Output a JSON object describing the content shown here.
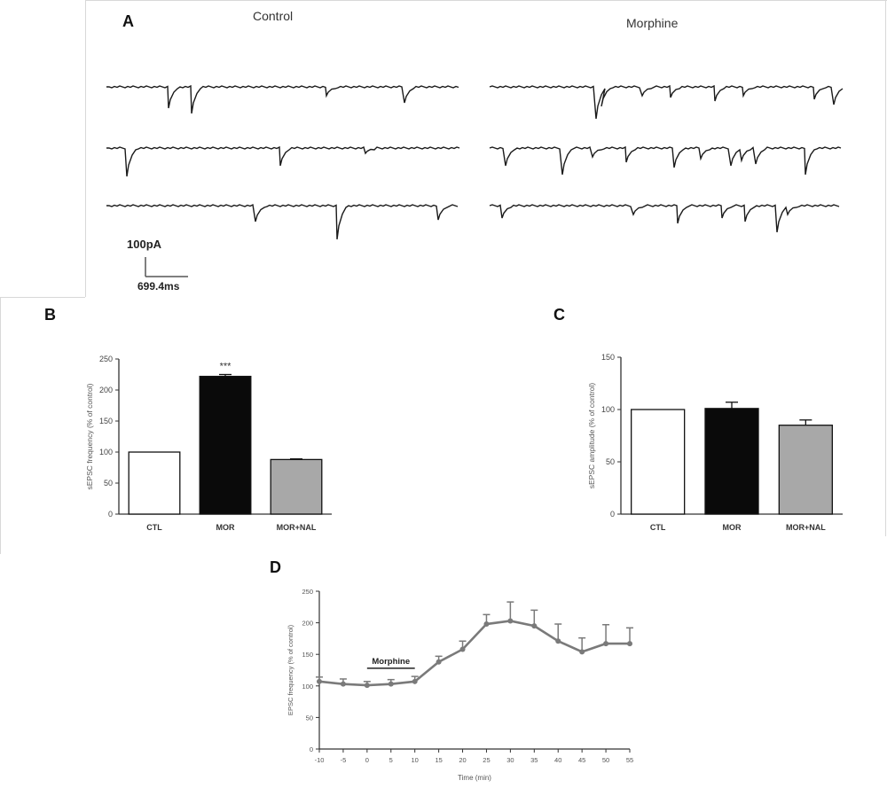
{
  "panel_a": {
    "label": "A",
    "control_title": "Control",
    "morphine_title": "Morphine",
    "scale_current": "100pA",
    "scale_time": "699.4ms"
  },
  "panel_b": {
    "label": "B"
  },
  "panel_c": {
    "label": "C"
  },
  "panel_d": {
    "label": "D"
  },
  "colors": {
    "black_bar": "#0a0a0a",
    "grey_bar": "#a8a8a8",
    "white_bar": "#ffffff",
    "trace": "#1a1a1a",
    "line_series": "#7a7a7a"
  },
  "chart_data": [
    {
      "id": "B",
      "type": "bar",
      "categories": [
        "CTL",
        "MOR",
        "MOR+NAL"
      ],
      "values": [
        100,
        222,
        88
      ],
      "errors": [
        0,
        3,
        1
      ],
      "fills": [
        "white",
        "black",
        "grey"
      ],
      "annotation": "***",
      "annotation_index": 1,
      "ylabel": "sEPSC frequency (% of control)",
      "ylim": [
        0,
        250
      ],
      "yticks": [
        "0",
        "50",
        "100",
        "150",
        "200",
        "250"
      ],
      "ytick_values": [
        0,
        50,
        100,
        150,
        200,
        250
      ]
    },
    {
      "id": "C",
      "type": "bar",
      "categories": [
        "CTL",
        "MOR",
        "MOR+NAL"
      ],
      "values": [
        100,
        101,
        85
      ],
      "errors": [
        0,
        6,
        5
      ],
      "fills": [
        "white",
        "black",
        "grey"
      ],
      "ylabel": "sEPSC amplitude (% of control)",
      "ylim": [
        0,
        150
      ],
      "yticks": [
        "0",
        "50",
        "100",
        "150"
      ],
      "ytick_values": [
        0,
        50,
        100,
        150
      ]
    },
    {
      "id": "D",
      "type": "line",
      "x": [
        -10,
        -5,
        0,
        5,
        10,
        15,
        20,
        25,
        30,
        35,
        40,
        45,
        50,
        55
      ],
      "values": [
        107,
        103,
        101,
        103,
        107,
        138,
        158,
        198,
        203,
        195,
        171,
        154,
        167,
        167
      ],
      "errors": [
        7,
        8,
        6,
        7,
        8,
        9,
        13,
        15,
        30,
        25,
        27,
        22,
        30,
        25
      ],
      "ylabel": "EPSC frequency (% of control)",
      "xlabel": "Time (min)",
      "ylim": [
        0,
        250
      ],
      "yticks": [
        "0",
        "50",
        "100",
        "150",
        "200",
        "250"
      ],
      "ytick_values": [
        0,
        50,
        100,
        150,
        200,
        250
      ],
      "xticks": [
        "-10",
        "-5",
        "0",
        "5",
        "10",
        "15",
        "20",
        "25",
        "30",
        "35",
        "40",
        "45",
        "50",
        "55"
      ],
      "bar_annotation": {
        "label": "Morphine",
        "x_start": 0,
        "x_end": 10,
        "y": 128
      }
    }
  ]
}
